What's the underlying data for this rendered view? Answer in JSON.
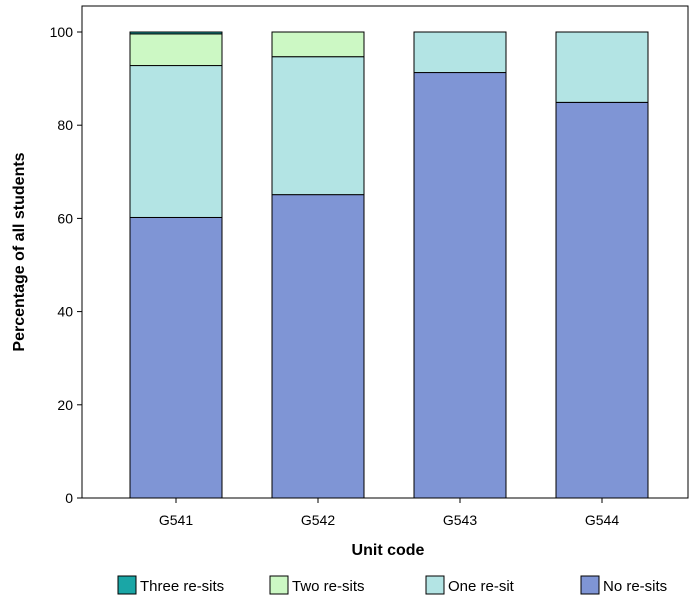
{
  "chart_data": {
    "type": "bar",
    "stacked": true,
    "xlabel": "Unit code",
    "ylabel": "Percentage of all students",
    "ylim": [
      0,
      100
    ],
    "yticks": [
      0,
      20,
      40,
      60,
      80,
      100
    ],
    "grid": false,
    "legend_position": "bottom",
    "categories": [
      "G541",
      "G542",
      "G543",
      "G544"
    ],
    "series": [
      {
        "name": "No re-sits",
        "color": "#7f95d5",
        "values": [
          60.2,
          65.1,
          91.3,
          84.9
        ]
      },
      {
        "name": "One re-sit",
        "color": "#b3e4e4",
        "values": [
          32.6,
          29.6,
          8.7,
          15.1
        ]
      },
      {
        "name": "Two re-sits",
        "color": "#ccf8c4",
        "values": [
          6.8,
          5.3,
          0,
          0
        ]
      },
      {
        "name": "Three re-sits",
        "color": "#1aa6a6",
        "values": [
          0.4,
          0,
          0,
          0
        ]
      }
    ],
    "legend_order": [
      "Three re-sits",
      "Two re-sits",
      "One re-sit",
      "No re-sits"
    ]
  }
}
